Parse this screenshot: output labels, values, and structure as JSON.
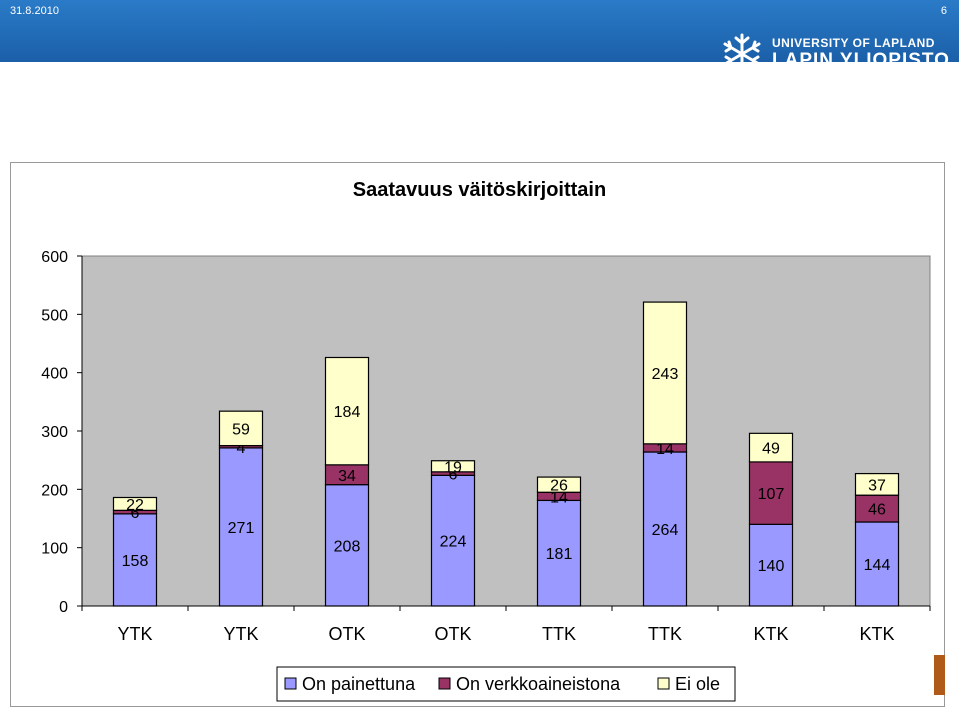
{
  "header": {
    "date": "31.8.2010",
    "slide_number": "6",
    "logo_line1": "UNIVERSITY OF LAPLAND",
    "logo_line2": "LAPIN YLIOPISTO"
  },
  "colors": {
    "header_bar": "#1f6fbf",
    "series_printed": "#9999ff",
    "series_online": "#993366",
    "series_none": "#ffffcc"
  },
  "chart_data": {
    "type": "bar",
    "stacked": true,
    "title": "Saatavuus väitöskirjoittain",
    "categories": [
      "YTK",
      "YTK",
      "OTK",
      "OTK",
      "TTK",
      "TTK",
      "KTK",
      "KTK"
    ],
    "series": [
      {
        "name": "On painettuna",
        "color": "#9999ff",
        "values": [
          158,
          271,
          208,
          224,
          181,
          264,
          140,
          144
        ]
      },
      {
        "name": "On verkkoaineistona",
        "color": "#993366",
        "values": [
          6,
          4,
          34,
          6,
          14,
          14,
          107,
          46
        ]
      },
      {
        "name": "Ei ole",
        "color": "#ffffcc",
        "values": [
          22,
          59,
          184,
          19,
          26,
          243,
          49,
          37
        ]
      }
    ],
    "yticks": [
      0,
      100,
      200,
      300,
      400,
      500,
      600
    ],
    "ylim": [
      0,
      600
    ],
    "grid": false,
    "legend": "bottom",
    "plot_background": "#c0c0c0"
  }
}
